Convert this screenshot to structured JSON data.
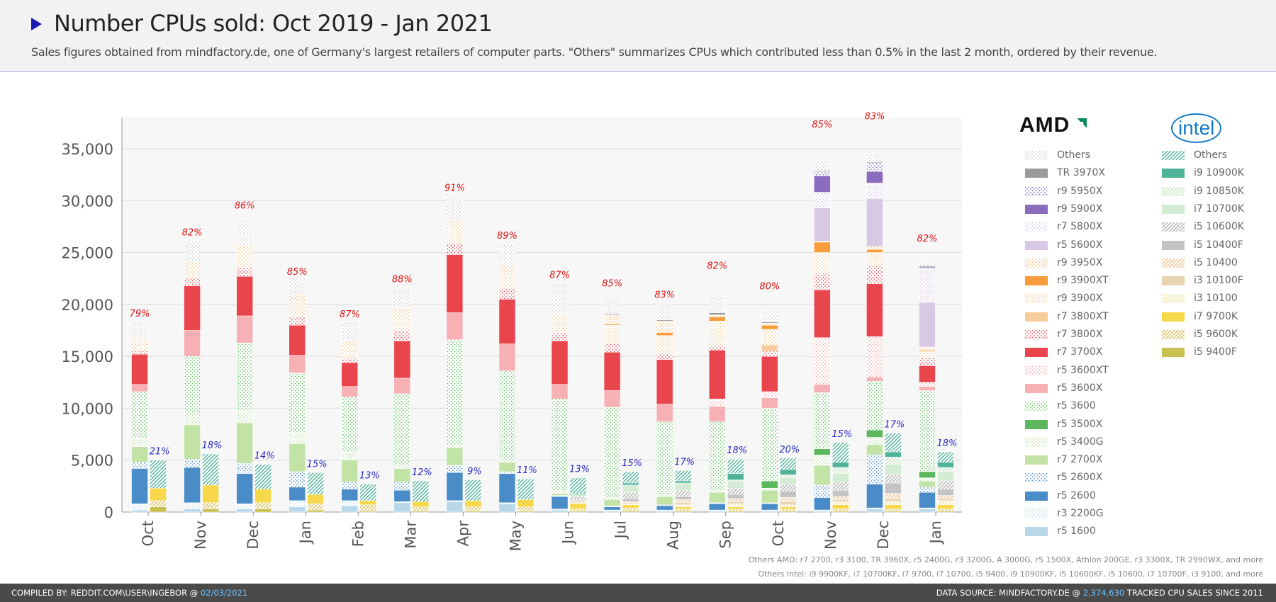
{
  "header": {
    "title": "Number CPUs sold: Oct 2019 - Jan 2021",
    "subtitle": "Sales figures obtained from mindfactory.de, one of Germany's largest retailers of computer parts. \"Others\" summarizes CPUs which contributed less than 0.5% in the last 2 month, ordered by their revenue."
  },
  "legend": {
    "amd_logo": "AMD",
    "intel_logo": "intel",
    "amd_items": [
      {
        "label": "Others",
        "color": "#c8c8c8",
        "pattern": "dots-gray"
      },
      {
        "label": "TR 3970X",
        "color": "#9b9b9b",
        "pattern": "solid"
      },
      {
        "label": "r9 5950X",
        "color": "#8a6bbd",
        "pattern": "dots"
      },
      {
        "label": "r9 5900X",
        "color": "#8a6bbd",
        "pattern": "solid"
      },
      {
        "label": "r7 5800X",
        "color": "#cdbde3",
        "pattern": "dots"
      },
      {
        "label": "r5 5600X",
        "color": "#d8c8e4",
        "pattern": "solid"
      },
      {
        "label": "r9 3950X",
        "color": "#f7b26a",
        "pattern": "dots"
      },
      {
        "label": "r9 3900XT",
        "color": "#f79d3c",
        "pattern": "solid"
      },
      {
        "label": "r9 3900X",
        "color": "#f7c68a",
        "pattern": "dots"
      },
      {
        "label": "r7 3800XT",
        "color": "#f8cc9a",
        "pattern": "solid"
      },
      {
        "label": "r7 3800X",
        "color": "#e8454d",
        "pattern": "dots"
      },
      {
        "label": "r7 3700X",
        "color": "#e8454d",
        "pattern": "solid"
      },
      {
        "label": "r5 3600XT",
        "color": "#f5a3a8",
        "pattern": "dots"
      },
      {
        "label": "r5 3600X",
        "color": "#f7b0b4",
        "pattern": "solid"
      },
      {
        "label": "r5 3600",
        "color": "#5fbf5f",
        "pattern": "dots"
      },
      {
        "label": "r5 3500X",
        "color": "#5cb85c",
        "pattern": "solid"
      },
      {
        "label": "r5 3400G",
        "color": "#b8dc9c",
        "pattern": "dots"
      },
      {
        "label": "r7 2700X",
        "color": "#c2e3a6",
        "pattern": "solid"
      },
      {
        "label": "r5 2600X",
        "color": "#4a8cc8",
        "pattern": "dots"
      },
      {
        "label": "r5 2600",
        "color": "#4a8cc8",
        "pattern": "solid"
      },
      {
        "label": "r3 2200G",
        "color": "#b8d8ea",
        "pattern": "dots"
      },
      {
        "label": "r5 1600",
        "color": "#b8d8ea",
        "pattern": "solid"
      }
    ],
    "intel_items": [
      {
        "label": "Others",
        "color": "#4fb39a",
        "pattern": "hatch"
      },
      {
        "label": "i9 10900K",
        "color": "#4fb39a",
        "pattern": "solid"
      },
      {
        "label": "i9 10850K",
        "color": "#a8d8a0",
        "pattern": "hatch-light"
      },
      {
        "label": "i7 10700K",
        "color": "#d4ecd4",
        "pattern": "solid"
      },
      {
        "label": "i5 10600K",
        "color": "#b0b0b0",
        "pattern": "hatch"
      },
      {
        "label": "i5 10400F",
        "color": "#c4c4c4",
        "pattern": "solid"
      },
      {
        "label": "i5 10400",
        "color": "#f0c090",
        "pattern": "hatch"
      },
      {
        "label": "i3 10100F",
        "color": "#e8d4b0",
        "pattern": "solid"
      },
      {
        "label": "i3 10100",
        "color": "#f5e6a8",
        "pattern": "hatch"
      },
      {
        "label": "i7 9700K",
        "color": "#f7d84a",
        "pattern": "solid"
      },
      {
        "label": "i5 9600K",
        "color": "#d8c060",
        "pattern": "hatch"
      },
      {
        "label": "i5 9400F",
        "color": "#c8c050",
        "pattern": "solid"
      }
    ]
  },
  "notes": {
    "others_amd": "Others AMD: r7 2700, r3 3100, TR 3960X, r5 2400G, r3 3200G, A 3000G, r5 1500X, Athlon 200GE, r3 3300X, TR 2990WX, and more",
    "others_intel": "Others Intel: i9 9900KF, i7 10700KF, i7 9700, i7 10700, i5 9400, i9 10900KF, i5 10600KF, i5 10600, i7 10700F, i3 9100, and more"
  },
  "footer": {
    "left_prefix": "COMPILED BY: REDDIT.COM\\USER\\INGEBOR @ ",
    "left_date": "02/03/2021",
    "right_prefix": "DATA SOURCE: MINDFACTORY.DE @ ",
    "right_count": "2,374,630",
    "right_suffix": " TRACKED CPU SALES SINCE 2011"
  },
  "colors": {
    "amd_label": "#e01010",
    "intel_label": "#2a2ac0",
    "grid": "#dddddd",
    "plot_bg": "#f7f7f7"
  },
  "chart_data": {
    "type": "bar",
    "stacked": true,
    "ylim": [
      0,
      38000
    ],
    "yticks": [
      0,
      5000,
      10000,
      15000,
      20000,
      25000,
      30000,
      35000
    ],
    "ytick_labels": [
      "0",
      "5,000",
      "10,000",
      "15,000",
      "20,000",
      "25,000",
      "30,000",
      "35,000"
    ],
    "categories": [
      "Oct",
      "Nov",
      "Dec",
      "Jan",
      "Feb",
      "Mar",
      "Apr",
      "May",
      "Jun",
      "Jul",
      "Aug",
      "Sep",
      "Oct",
      "Nov",
      "Dec",
      "Jan"
    ],
    "amd_share_labels": [
      "79%",
      "82%",
      "86%",
      "85%",
      "87%",
      "88%",
      "91%",
      "89%",
      "87%",
      "85%",
      "83%",
      "82%",
      "80%",
      "85%",
      "83%",
      "82%"
    ],
    "intel_share_labels": [
      "21%",
      "18%",
      "14%",
      "15%",
      "13%",
      "12%",
      "9%",
      "11%",
      "13%",
      "15%",
      "17%",
      "18%",
      "20%",
      "15%",
      "17%",
      "18%"
    ],
    "amd_totals": [
      18300,
      26100,
      28700,
      22300,
      18200,
      21600,
      30400,
      25800,
      22000,
      21200,
      20100,
      22900,
      20900,
      36500,
      37300,
      25500
    ],
    "intel_totals": [
      5000,
      5600,
      4600,
      3800,
      2700,
      3000,
      3100,
      3200,
      3300,
      3900,
      4000,
      5100,
      5200,
      6700,
      7600,
      5800
    ],
    "amd_series": [
      {
        "name": "r5 1600",
        "values": [
          200,
          300,
          300,
          500,
          600,
          900,
          1000,
          800,
          200,
          100,
          100,
          100,
          100,
          100,
          300,
          300
        ]
      },
      {
        "name": "r3 2200G",
        "values": [
          600,
          600,
          500,
          600,
          500,
          100,
          100,
          100,
          100,
          100,
          100,
          100,
          100,
          100,
          100,
          100
        ]
      },
      {
        "name": "r5 2600",
        "values": [
          3400,
          3400,
          2900,
          1300,
          1100,
          1100,
          2700,
          2800,
          1200,
          300,
          400,
          600,
          600,
          1200,
          2300,
          1500
        ]
      },
      {
        "name": "r5 2600X",
        "values": [
          600,
          800,
          1000,
          1500,
          700,
          800,
          700,
          200,
          100,
          100,
          100,
          100,
          100,
          1200,
          2800,
          500
        ]
      },
      {
        "name": "r7 2700X",
        "values": [
          1500,
          3300,
          3900,
          2700,
          2100,
          1300,
          1700,
          900,
          200,
          600,
          800,
          1000,
          1200,
          1900,
          1000,
          600
        ]
      },
      {
        "name": "r5 3400G",
        "values": [
          800,
          1000,
          1200,
          1000,
          800,
          300,
          300,
          100,
          200,
          200,
          200,
          200,
          200,
          1000,
          700,
          300
        ]
      },
      {
        "name": "r5 3500X",
        "values": [
          0,
          0,
          0,
          0,
          0,
          0,
          0,
          0,
          0,
          0,
          0,
          0,
          700,
          600,
          700,
          600
        ]
      },
      {
        "name": "r5 3600",
        "values": [
          4500,
          5600,
          6500,
          5800,
          5300,
          6900,
          10100,
          8700,
          8900,
          8700,
          7000,
          6600,
          7000,
          5400,
          4700,
          7800
        ]
      },
      {
        "name": "r5 3600X",
        "values": [
          700,
          2500,
          2600,
          1700,
          1000,
          1500,
          2600,
          2600,
          1400,
          1600,
          1700,
          1500,
          1000,
          800,
          400,
          400
        ]
      },
      {
        "name": "r5 3600XT",
        "values": [
          0,
          0,
          0,
          0,
          0,
          0,
          0,
          0,
          0,
          0,
          0,
          700,
          600,
          4500,
          3900,
          400
        ]
      },
      {
        "name": "r7 3700X",
        "values": [
          2900,
          4300,
          3800,
          2900,
          2300,
          3600,
          5600,
          4300,
          4200,
          3700,
          4300,
          4700,
          3400,
          4600,
          5100,
          1600
        ]
      },
      {
        "name": "r7 3800X",
        "values": [
          300,
          700,
          900,
          800,
          400,
          1000,
          1100,
          1100,
          800,
          800,
          500,
          400,
          500,
          1600,
          1700,
          800
        ]
      },
      {
        "name": "r7 3800XT",
        "values": [
          0,
          0,
          0,
          0,
          0,
          0,
          0,
          0,
          0,
          0,
          0,
          0,
          600,
          0,
          0,
          0
        ]
      },
      {
        "name": "r9 3900X",
        "values": [
          1300,
          1400,
          1500,
          1500,
          1300,
          1800,
          1800,
          1500,
          1800,
          1800,
          1800,
          2400,
          1500,
          2000,
          1300,
          600
        ]
      },
      {
        "name": "r9 3900XT",
        "values": [
          0,
          0,
          0,
          0,
          0,
          0,
          0,
          0,
          0,
          100,
          300,
          400,
          400,
          1000,
          300,
          100
        ]
      },
      {
        "name": "r9 3950X",
        "values": [
          0,
          200,
          600,
          700,
          400,
          400,
          400,
          600,
          100,
          900,
          1100,
          200,
          200,
          100,
          300,
          300
        ]
      },
      {
        "name": "r5 5600X",
        "values": [
          0,
          0,
          0,
          0,
          0,
          0,
          0,
          0,
          0,
          0,
          0,
          0,
          0,
          3200,
          4600,
          4300
        ]
      },
      {
        "name": "r7 5800X",
        "values": [
          0,
          0,
          0,
          0,
          0,
          0,
          0,
          0,
          0,
          0,
          0,
          0,
          0,
          1500,
          1500,
          3300
        ]
      },
      {
        "name": "r9 5900X",
        "values": [
          0,
          0,
          0,
          0,
          0,
          0,
          0,
          0,
          0,
          0,
          0,
          0,
          0,
          1600,
          1100,
          100
        ]
      },
      {
        "name": "r9 5950X",
        "values": [
          0,
          0,
          0,
          0,
          0,
          0,
          0,
          0,
          0,
          0,
          0,
          0,
          0,
          400,
          800,
          0
        ]
      },
      {
        "name": "TR 3970X",
        "values": [
          0,
          0,
          0,
          0,
          0,
          0,
          0,
          0,
          0,
          100,
          100,
          200,
          100,
          100,
          100,
          100
        ]
      },
      {
        "name": "Others",
        "values": [
          1500,
          2000,
          2500,
          1500,
          1800,
          1900,
          2400,
          2100,
          2900,
          1500,
          1600,
          1600,
          1100,
          900,
          800,
          400
        ]
      }
    ],
    "intel_series": [
      {
        "name": "i5 9400F",
        "values": [
          500,
          300,
          300,
          200,
          100,
          100,
          100,
          100,
          100,
          100,
          100,
          100,
          100,
          100,
          100,
          100
        ]
      },
      {
        "name": "i5 9600K",
        "values": [
          600,
          600,
          600,
          600,
          600,
          400,
          400,
          400,
          200,
          300,
          200,
          200,
          200,
          200,
          200,
          200
        ]
      },
      {
        "name": "i7 9700K",
        "values": [
          1200,
          1700,
          1300,
          900,
          400,
          500,
          600,
          700,
          500,
          300,
          200,
          200,
          200,
          400,
          400,
          400
        ]
      },
      {
        "name": "i3 10100",
        "values": [
          0,
          0,
          0,
          0,
          0,
          0,
          0,
          0,
          100,
          100,
          200,
          300,
          200,
          300,
          300,
          400
        ]
      },
      {
        "name": "i3 10100F",
        "values": [
          0,
          0,
          0,
          0,
          0,
          0,
          0,
          0,
          100,
          100,
          200,
          200,
          300,
          200,
          300,
          200
        ]
      },
      {
        "name": "i5 10400",
        "values": [
          0,
          0,
          0,
          0,
          0,
          0,
          0,
          0,
          100,
          100,
          300,
          300,
          400,
          300,
          500,
          300
        ]
      },
      {
        "name": "i5 10400F",
        "values": [
          0,
          0,
          0,
          0,
          0,
          0,
          0,
          0,
          100,
          300,
          300,
          400,
          600,
          600,
          1000,
          600
        ]
      },
      {
        "name": "i5 10600K",
        "values": [
          0,
          0,
          0,
          0,
          0,
          0,
          0,
          0,
          300,
          600,
          600,
          600,
          700,
          800,
          800,
          800
        ]
      },
      {
        "name": "i7 10700K",
        "values": [
          0,
          0,
          0,
          0,
          0,
          0,
          0,
          0,
          200,
          700,
          700,
          700,
          600,
          800,
          1000,
          900
        ]
      },
      {
        "name": "i9 10850K",
        "values": [
          0,
          0,
          0,
          0,
          0,
          0,
          0,
          0,
          0,
          0,
          0,
          100,
          300,
          600,
          700,
          400
        ]
      },
      {
        "name": "i9 10900K",
        "values": [
          0,
          0,
          0,
          0,
          0,
          0,
          0,
          0,
          100,
          200,
          200,
          600,
          500,
          500,
          500,
          500
        ]
      },
      {
        "name": "Others",
        "values": [
          2700,
          3000,
          2400,
          2100,
          1600,
          2000,
          2000,
          2000,
          1500,
          1100,
          1000,
          1400,
          1100,
          1900,
          1800,
          1000
        ]
      }
    ]
  }
}
